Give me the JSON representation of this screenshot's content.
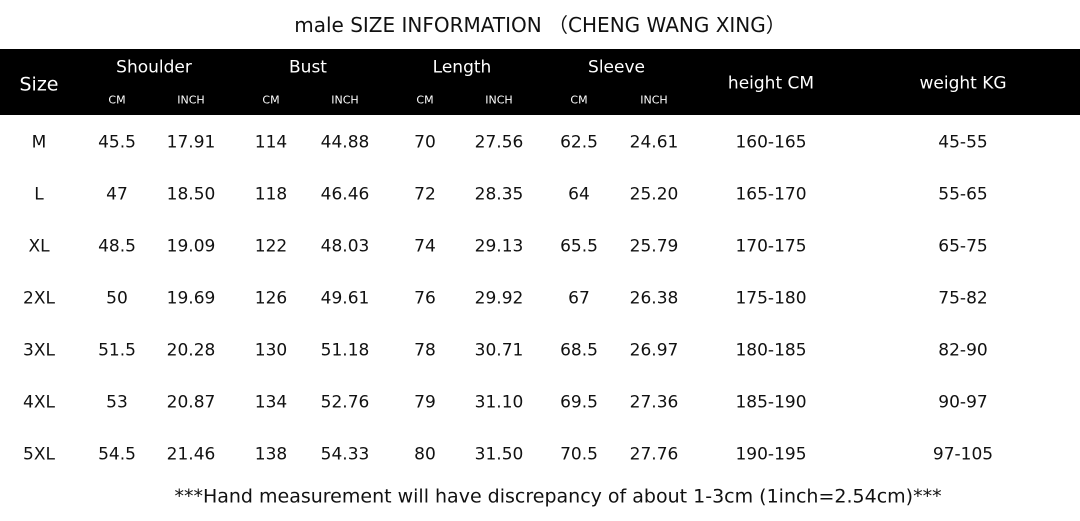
{
  "title": "male  SIZE INFORMATION  （CHENG WANG XING）",
  "header": {
    "size": "Size",
    "groups": [
      {
        "label": "Shoulder",
        "units": [
          "CM",
          "INCH"
        ]
      },
      {
        "label": "Bust",
        "units": [
          "CM",
          "INCH"
        ]
      },
      {
        "label": "Length",
        "units": [
          "CM",
          "INCH"
        ]
      },
      {
        "label": "Sleeve",
        "units": [
          "CM",
          "INCH"
        ]
      }
    ],
    "height": "height  CM",
    "weight": "weight  KG"
  },
  "rows": [
    [
      "M",
      "45.5",
      "17.91",
      "114",
      "44.88",
      "70",
      "27.56",
      "62.5",
      "24.61",
      "160-165",
      "45-55"
    ],
    [
      "L",
      "47",
      "18.50",
      "118",
      "46.46",
      "72",
      "28.35",
      "64",
      "25.20",
      "165-170",
      "55-65"
    ],
    [
      "XL",
      "48.5",
      "19.09",
      "122",
      "48.03",
      "74",
      "29.13",
      "65.5",
      "25.79",
      "170-175",
      "65-75"
    ],
    [
      "2XL",
      "50",
      "19.69",
      "126",
      "49.61",
      "76",
      "29.92",
      "67",
      "26.38",
      "175-180",
      "75-82"
    ],
    [
      "3XL",
      "51.5",
      "20.28",
      "130",
      "51.18",
      "78",
      "30.71",
      "68.5",
      "26.97",
      "180-185",
      "82-90"
    ],
    [
      "4XL",
      "53",
      "20.87",
      "134",
      "52.76",
      "79",
      "31.10",
      "69.5",
      "27.36",
      "185-190",
      "90-97"
    ],
    [
      "5XL",
      "54.5",
      "21.46",
      "138",
      "54.33",
      "80",
      "31.50",
      "70.5",
      "27.76",
      "190-195",
      "97-105"
    ]
  ],
  "note": "***Hand measurement will have discrepancy of about 1-3cm (1inch=2.54cm)***"
}
